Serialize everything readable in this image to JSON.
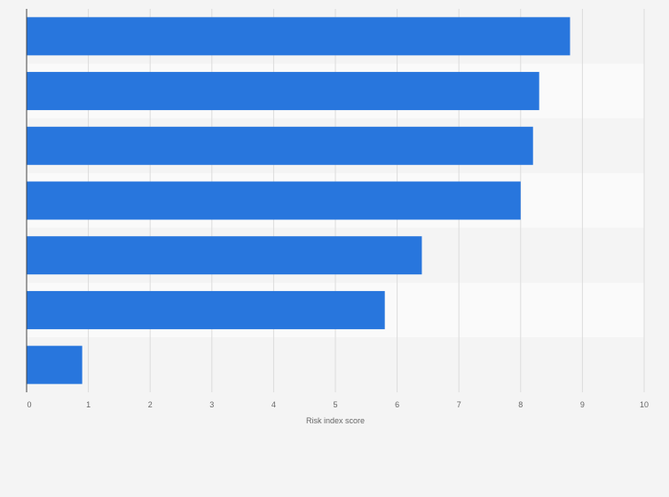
{
  "chart_data": {
    "type": "bar",
    "orientation": "horizontal",
    "categories": [
      "",
      "",
      "",
      "",
      "",
      "",
      ""
    ],
    "values": [
      8.8,
      8.3,
      8.2,
      8.0,
      6.4,
      5.8,
      0.9
    ],
    "title": "",
    "xlabel": "Risk index score",
    "ylabel": "",
    "xlim": [
      0,
      10
    ],
    "xticks": [
      "0",
      "1",
      "2",
      "3",
      "4",
      "5",
      "6",
      "7",
      "8",
      "9",
      "10"
    ],
    "grid": true,
    "bar_color": "#2876dd",
    "band_colors": [
      "#f4f4f4",
      "#fafafa"
    ]
  }
}
